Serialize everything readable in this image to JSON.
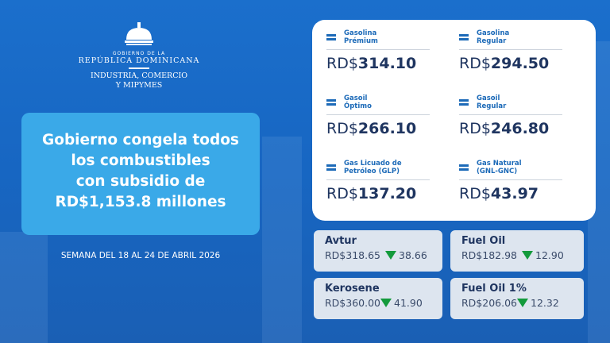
{
  "logo": {
    "line1": "GOBIERNO DE LA",
    "line2": "REPÚBLICA DOMINICANA",
    "line3": "INDUSTRIA, COMERCIO",
    "line4": "Y MIPYMES"
  },
  "headline": {
    "l1": "Gobierno congela todos",
    "l2": "los combustibles",
    "l3": "con subsidio de",
    "l4": "RD$1,153.8 millones"
  },
  "week": "SEMANA DEL 18 AL 24 DE ABRIL 2026",
  "currency": "RD$",
  "fuels": [
    {
      "l1": "Gasolina",
      "l2": "Prémium",
      "price": "314.10",
      "icon": "equals-icon"
    },
    {
      "l1": "Gasolina",
      "l2": "Regular",
      "price": "294.50",
      "icon": "equals-icon"
    },
    {
      "l1": "Gasoil",
      "l2": "Óptimo",
      "price": "266.10",
      "icon": "equals-icon"
    },
    {
      "l1": "Gasoil",
      "l2": "Regular",
      "price": "246.80",
      "icon": "equals-icon"
    },
    {
      "l1": "Gas Licuado de",
      "l2": "Petróleo (GLP)",
      "price": "137.20",
      "icon": "equals-icon"
    },
    {
      "l1": "Gas Natural",
      "l2": "(GNL-GNC)",
      "price": "43.97",
      "icon": "equals-icon"
    }
  ],
  "others": [
    {
      "name": "Avtur",
      "price": "RD$318.65",
      "change": "38.66",
      "icon": "down-triangle-icon"
    },
    {
      "name": "Fuel Oil",
      "price": "RD$182.98",
      "change": "12.90",
      "icon": "down-triangle-icon"
    },
    {
      "name": "Kerosene",
      "price": "RD$360.00",
      "change": "41.90",
      "icon": "down-triangle-icon"
    },
    {
      "name": "Fuel Oil 1%",
      "price": "RD$206.06",
      "change": "12.32",
      "icon": "down-triangle-icon"
    }
  ],
  "colors": {
    "background": "#1766c2",
    "headline_box": "#3aa9e8",
    "down": "#139a3c",
    "label": "#1c6ab8"
  }
}
